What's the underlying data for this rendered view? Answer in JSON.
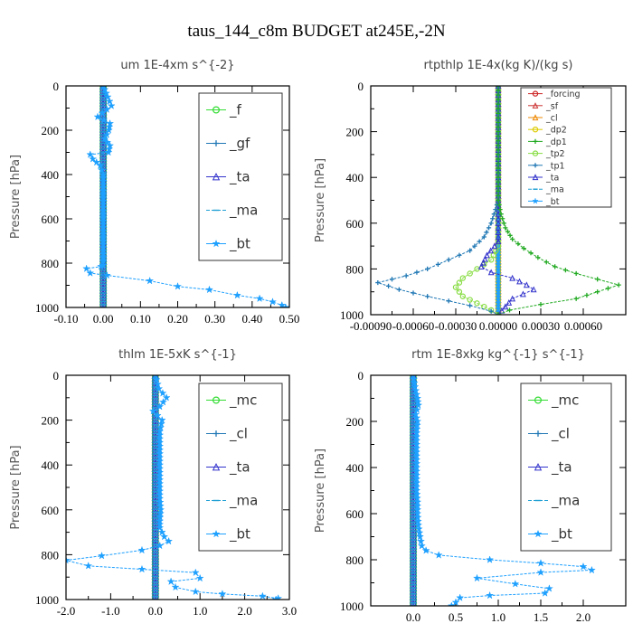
{
  "suptitle": "taus_144_c8m  BUDGET at245E,-2N",
  "chart_data": [
    {
      "type": "line",
      "title": "um   1E-4xm s^{-2}",
      "ylabel": "Pressure [hPa]",
      "xlim": [
        -0.1,
        0.5
      ],
      "ylim": [
        1000,
        0
      ],
      "xticks": [
        "-0.10",
        "0.00",
        "0.10",
        "0.20",
        "0.30",
        "0.40",
        "0.50"
      ],
      "xtick_values": [
        -0.1,
        0.0,
        0.1,
        0.2,
        0.3,
        0.4,
        0.5
      ],
      "yticks": [
        "0",
        "200",
        "400",
        "600",
        "800",
        "1000"
      ],
      "ytick_values": [
        0,
        200,
        400,
        600,
        800,
        1000
      ],
      "legend": "top-right",
      "series": [
        {
          "name": "_f",
          "color": "#33dd33",
          "marker": "circle",
          "x": [
            0,
            0
          ],
          "y": [
            0,
            1000
          ]
        },
        {
          "name": "_gf",
          "color": "#1f77b4",
          "marker": "plus",
          "x": [
            0,
            0
          ],
          "y": [
            0,
            1000
          ]
        },
        {
          "name": "_ta",
          "color": "#3333cc",
          "marker": "triangle",
          "x": [
            0,
            0
          ],
          "y": [
            0,
            1000
          ]
        },
        {
          "name": "_ma",
          "color": "#1f9fd4",
          "marker": "dash",
          "x": [
            0,
            0
          ],
          "y": [
            0,
            1000
          ]
        },
        {
          "name": "_bt",
          "color": "#1ea0ff",
          "marker": "star",
          "x": [
            0.0,
            0.012,
            0.022,
            -0.015,
            0.018,
            0.015,
            0.004,
            0.018,
            0.014,
            -0.035,
            -0.028,
            -0.008,
            0.0,
            0.0,
            0.0,
            0.0,
            0.0,
            0.0,
            0.0,
            0.0,
            0.0,
            0.0,
            0.0,
            0.0,
            0.0,
            0.0,
            0.0,
            -0.006,
            -0.045,
            -0.035,
            0.01,
            0.125,
            0.2,
            0.285,
            0.36,
            0.42,
            0.455,
            0.48,
            0.49
          ],
          "y": [
            0,
            50,
            90,
            140,
            170,
            200,
            240,
            270,
            300,
            310,
            330,
            360,
            400,
            430,
            460,
            490,
            520,
            550,
            580,
            610,
            640,
            670,
            700,
            730,
            760,
            790,
            810,
            815,
            825,
            845,
            855,
            880,
            905,
            920,
            945,
            960,
            975,
            990,
            1000
          ]
        }
      ]
    },
    {
      "type": "line",
      "title": "rtpthlp   1E-4x(kg K)/(kg s)",
      "ylabel": "Pressure [hPa]",
      "xlim": [
        -0.0009,
        0.0009
      ],
      "ylim": [
        1000,
        0
      ],
      "xticks": [
        "-0.00090",
        "-0.00060",
        "-0.00030",
        "0.00000",
        "0.00030",
        "0.00060"
      ],
      "xtick_values": [
        -0.0009,
        -0.0006,
        -0.0003,
        0.0,
        0.0003,
        0.0006
      ],
      "yticks": [
        "0",
        "200",
        "400",
        "600",
        "800",
        "1000"
      ],
      "ytick_values": [
        0,
        200,
        400,
        600,
        800,
        1000
      ],
      "legend": "top-right",
      "series": [
        {
          "name": "_forcing",
          "color": "#cc2222",
          "marker": "circle",
          "x": [
            0,
            0
          ],
          "y": [
            0,
            1000
          ]
        },
        {
          "name": "_sf",
          "color": "#cc3333",
          "marker": "triangle",
          "x": [
            0,
            0
          ],
          "y": [
            0,
            1000
          ]
        },
        {
          "name": "_cl",
          "color": "#ee8800",
          "marker": "triangle",
          "x": [
            0,
            0
          ],
          "y": [
            0,
            1000
          ]
        },
        {
          "name": "_dp2",
          "color": "#ddcc00",
          "marker": "circle",
          "x": [
            0,
            0
          ],
          "y": [
            0,
            1000
          ]
        },
        {
          "name": "_dp1",
          "color": "#22aa22",
          "marker": "plus",
          "x": [
            0.0,
            0.0,
            0.0,
            2e-05,
            5e-05,
            0.0001,
            0.00018,
            0.00028,
            0.0004,
            0.00055,
            0.0007,
            0.00085,
            0.0007,
            0.00055,
            0.0003,
            8e-05,
            0.0
          ],
          "y": [
            0,
            400,
            500,
            560,
            620,
            670,
            710,
            750,
            790,
            820,
            845,
            870,
            900,
            930,
            955,
            980,
            1000
          ]
        },
        {
          "name": "_tp2",
          "color": "#88dd44",
          "marker": "circle",
          "x": [
            0.0,
            0.0,
            -5e-05,
            -0.00015,
            -0.00025,
            -0.0003,
            -0.00025,
            -0.00015,
            -5e-05,
            0.0
          ],
          "y": [
            0,
            700,
            760,
            800,
            840,
            880,
            920,
            950,
            980,
            1000
          ]
        },
        {
          "name": "_tp1",
          "color": "#1f77b4",
          "marker": "plus",
          "x": [
            0.0,
            0.0,
            -5e-05,
            -0.0001,
            -0.0002,
            -0.00035,
            -0.0005,
            -0.00065,
            -0.00085,
            -0.0007,
            -0.0005,
            -0.00035,
            -0.0002,
            -5e-05,
            0.0
          ],
          "y": [
            0,
            500,
            600,
            660,
            720,
            760,
            800,
            830,
            860,
            890,
            920,
            940,
            960,
            985,
            1000
          ]
        },
        {
          "name": "_ta",
          "color": "#3333cc",
          "marker": "triangle",
          "x": [
            0.0,
            0.0,
            -8e-05,
            -0.00012,
            -5e-05,
            0.0001,
            0.0002,
            0.00025,
            0.0001,
            0.0
          ],
          "y": [
            0,
            680,
            740,
            790,
            815,
            840,
            870,
            890,
            930,
            1000
          ]
        },
        {
          "name": "_ma",
          "color": "#1f9fd4",
          "marker": "dash",
          "x": [
            0,
            0
          ],
          "y": [
            0,
            1000
          ]
        },
        {
          "name": "_bt",
          "color": "#1ea0ff",
          "marker": "star",
          "x": [
            0,
            0
          ],
          "y": [
            0,
            1000
          ]
        }
      ]
    },
    {
      "type": "line",
      "title": "thlm   1E-5xK s^{-1}",
      "ylabel": "Pressure [hPa]",
      "xlim": [
        -2.0,
        3.0
      ],
      "ylim": [
        1000,
        0
      ],
      "xticks": [
        "-2.0",
        "-1.0",
        "0.0",
        "1.0",
        "2.0",
        "3.0"
      ],
      "xtick_values": [
        -2.0,
        -1.0,
        0.0,
        1.0,
        2.0,
        3.0
      ],
      "yticks": [
        "0",
        "200",
        "400",
        "600",
        "800",
        "1000"
      ],
      "ytick_values": [
        0,
        200,
        400,
        600,
        800,
        1000
      ],
      "legend": "top-right",
      "series": [
        {
          "name": "_mc",
          "color": "#33dd33",
          "marker": "circle",
          "x": [
            0,
            0
          ],
          "y": [
            0,
            1000
          ]
        },
        {
          "name": "_cl",
          "color": "#1f77b4",
          "marker": "plus",
          "x": [
            0,
            0
          ],
          "y": [
            0,
            1000
          ]
        },
        {
          "name": "_ta",
          "color": "#3333cc",
          "marker": "triangle",
          "x": [
            0,
            0
          ],
          "y": [
            0,
            1000
          ]
        },
        {
          "name": "_ma",
          "color": "#1f9fd4",
          "marker": "dash",
          "x": [
            0,
            0
          ],
          "y": [
            0,
            1000
          ]
        },
        {
          "name": "_bt",
          "color": "#1ea0ff",
          "marker": "star",
          "x": [
            0.0,
            0.08,
            0.25,
            0.1,
            -0.05,
            0.15,
            0.1,
            0.1,
            0.1,
            0.1,
            0.1,
            0.1,
            0.1,
            0.12,
            0.1,
            0.1,
            0.2,
            0.3,
            0.1,
            -0.3,
            -1.2,
            -2.0,
            -1.5,
            0.9,
            1.0,
            0.35,
            0.45,
            0.9,
            1.5,
            2.4,
            2.75,
            2.7
          ],
          "y": [
            0,
            60,
            100,
            140,
            160,
            200,
            250,
            300,
            350,
            400,
            450,
            500,
            550,
            600,
            650,
            680,
            720,
            740,
            760,
            780,
            805,
            825,
            850,
            880,
            905,
            920,
            945,
            965,
            975,
            985,
            995,
            1000
          ]
        }
      ]
    },
    {
      "type": "line",
      "title": "rtm   1E-8xkg kg^{-1} s^{-1}",
      "ylabel": "Pressure [hPa]",
      "xlim": [
        -0.5,
        2.5
      ],
      "ylim": [
        1000,
        0
      ],
      "xticks": [
        "0.0",
        "0.5",
        "1.0",
        "1.5",
        "2.0"
      ],
      "xtick_values": [
        0.0,
        0.5,
        1.0,
        1.5,
        2.0
      ],
      "yticks": [
        "0",
        "200",
        "400",
        "600",
        "800",
        "1000"
      ],
      "ytick_values": [
        0,
        200,
        400,
        600,
        800,
        1000
      ],
      "legend": "top-right",
      "series": [
        {
          "name": "_mc",
          "color": "#33dd33",
          "marker": "circle",
          "x": [
            0,
            0
          ],
          "y": [
            0,
            1000
          ]
        },
        {
          "name": "_cl",
          "color": "#1f77b4",
          "marker": "plus",
          "x": [
            0,
            0
          ],
          "y": [
            0,
            1000
          ]
        },
        {
          "name": "_ta",
          "color": "#3333cc",
          "marker": "triangle",
          "x": [
            0,
            0
          ],
          "y": [
            0,
            1000
          ]
        },
        {
          "name": "_ma",
          "color": "#1f9fd4",
          "marker": "dash",
          "x": [
            0,
            0
          ],
          "y": [
            0,
            1000
          ]
        },
        {
          "name": "_bt",
          "color": "#1ea0ff",
          "marker": "star",
          "x": [
            0.0,
            0.02,
            0.05,
            0.06,
            0.03,
            0.05,
            0.04,
            0.04,
            0.04,
            0.04,
            0.04,
            0.04,
            0.05,
            0.05,
            0.06,
            0.08,
            0.1,
            0.15,
            0.3,
            0.9,
            1.5,
            2.0,
            2.1,
            1.5,
            0.75,
            1.2,
            1.6,
            1.55,
            0.9,
            0.55,
            0.5,
            0.45
          ],
          "y": [
            0,
            50,
            100,
            130,
            170,
            200,
            250,
            300,
            350,
            400,
            450,
            500,
            550,
            600,
            650,
            700,
            740,
            760,
            780,
            800,
            815,
            830,
            845,
            855,
            880,
            905,
            925,
            945,
            955,
            965,
            985,
            1000
          ]
        }
      ]
    }
  ]
}
